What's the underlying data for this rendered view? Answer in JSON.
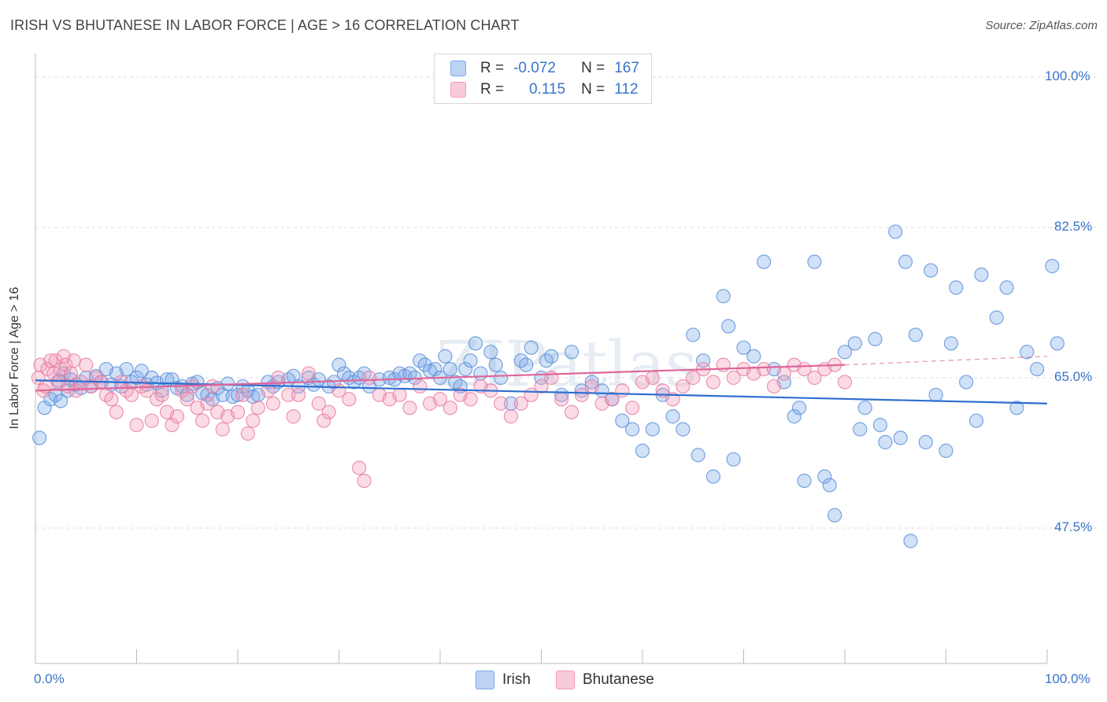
{
  "header": {
    "title": "IRISH VS BHUTANESE IN LABOR FORCE | AGE > 16 CORRELATION CHART",
    "source": "Source: ZipAtlas.com"
  },
  "legend": {
    "rows": [
      {
        "r_label": "R =",
        "r_value": "-0.072",
        "n_label": "N =",
        "n_value": "167",
        "color": "#7aaae8"
      },
      {
        "r_label": "R =",
        "r_value": "0.115",
        "n_label": "N =",
        "n_value": "112",
        "color": "#f39ab8"
      }
    ]
  },
  "chart_data": {
    "type": "scatter",
    "title": "IRISH VS BHUTANESE IN LABOR FORCE | AGE > 16 CORRELATION CHART",
    "ylabel": "In Labor Force | Age > 16",
    "xlabel": "",
    "xlim": [
      0,
      100
    ],
    "ylim": [
      30,
      103
    ],
    "x_tick_labels": [
      "0.0%",
      "100.0%"
    ],
    "y_tick_labels": [
      "100.0%",
      "82.5%",
      "65.0%",
      "47.5%"
    ],
    "y_ticks": [
      100,
      82.5,
      65,
      47.5
    ],
    "grid": true,
    "legend_position": "bottom-center",
    "watermark": "ZIPatlas",
    "series": [
      {
        "name": "Irish",
        "color": "#7aaae8",
        "stroke": "#5a8fd8",
        "trend": {
          "x": [
            0,
            100
          ],
          "y": [
            64.7,
            62.0
          ]
        },
        "points": [
          [
            0.4,
            58.0
          ],
          [
            0.9,
            61.5
          ],
          [
            1.5,
            62.5
          ],
          [
            2.0,
            63.0
          ],
          [
            2.3,
            64.7
          ],
          [
            2.5,
            62.3
          ],
          [
            2.8,
            65.5
          ],
          [
            3.2,
            63.5
          ],
          [
            3.5,
            64.8
          ],
          [
            4.0,
            64.2
          ],
          [
            4.5,
            63.8
          ],
          [
            5.0,
            65.0
          ],
          [
            5.5,
            64.0
          ],
          [
            6.0,
            65.2
          ],
          [
            6.5,
            64.5
          ],
          [
            7.0,
            66.0
          ],
          [
            7.5,
            64.2
          ],
          [
            8.0,
            65.5
          ],
          [
            8.5,
            64.0
          ],
          [
            9.0,
            66.0
          ],
          [
            9.5,
            64.5
          ],
          [
            10.0,
            65.0
          ],
          [
            10.5,
            65.8
          ],
          [
            11.0,
            64.2
          ],
          [
            11.5,
            65.0
          ],
          [
            12.0,
            64.4
          ],
          [
            12.5,
            63.5
          ],
          [
            13.0,
            64.8
          ],
          [
            13.5,
            64.8
          ],
          [
            14.0,
            63.8
          ],
          [
            14.5,
            64.0
          ],
          [
            15.0,
            63.0
          ],
          [
            15.5,
            64.3
          ],
          [
            16.0,
            64.5
          ],
          [
            16.5,
            63.2
          ],
          [
            17.0,
            63.0
          ],
          [
            17.5,
            62.5
          ],
          [
            18.0,
            63.8
          ],
          [
            18.5,
            63.0
          ],
          [
            19.0,
            64.3
          ],
          [
            19.5,
            62.8
          ],
          [
            20.0,
            63.0
          ],
          [
            20.5,
            64.0
          ],
          [
            21.0,
            63.5
          ],
          [
            21.5,
            62.8
          ],
          [
            22.0,
            63.0
          ],
          [
            23.0,
            64.5
          ],
          [
            23.5,
            64.0
          ],
          [
            24.0,
            64.5
          ],
          [
            25.0,
            64.8
          ],
          [
            25.5,
            65.2
          ],
          [
            26.0,
            64.0
          ],
          [
            27.0,
            65.0
          ],
          [
            27.5,
            64.2
          ],
          [
            28.0,
            64.8
          ],
          [
            29.0,
            64.0
          ],
          [
            29.5,
            64.5
          ],
          [
            30.0,
            66.5
          ],
          [
            30.5,
            65.5
          ],
          [
            31.0,
            65.0
          ],
          [
            31.5,
            64.5
          ],
          [
            32.0,
            65.0
          ],
          [
            32.5,
            65.5
          ],
          [
            33.0,
            64.0
          ],
          [
            34.0,
            64.8
          ],
          [
            35.0,
            65.0
          ],
          [
            35.5,
            64.8
          ],
          [
            36.0,
            65.5
          ],
          [
            36.5,
            65.2
          ],
          [
            37.0,
            65.5
          ],
          [
            37.5,
            65.0
          ],
          [
            38.0,
            67.0
          ],
          [
            38.5,
            66.5
          ],
          [
            39.0,
            65.8
          ],
          [
            39.5,
            66.0
          ],
          [
            40.0,
            65.0
          ],
          [
            40.5,
            67.5
          ],
          [
            41.0,
            66.0
          ],
          [
            41.5,
            64.5
          ],
          [
            42.0,
            64.0
          ],
          [
            42.5,
            66.0
          ],
          [
            43.0,
            67.0
          ],
          [
            43.5,
            69.0
          ],
          [
            44.0,
            65.5
          ],
          [
            45.0,
            68.0
          ],
          [
            45.5,
            66.5
          ],
          [
            46.0,
            65.0
          ],
          [
            47.0,
            62.0
          ],
          [
            48.0,
            67.0
          ],
          [
            48.5,
            66.5
          ],
          [
            49.0,
            68.5
          ],
          [
            50.0,
            65.0
          ],
          [
            50.5,
            67.0
          ],
          [
            51.0,
            67.5
          ],
          [
            52.0,
            63.0
          ],
          [
            53.0,
            68.0
          ],
          [
            54.0,
            63.5
          ],
          [
            55.0,
            64.5
          ],
          [
            56.0,
            63.5
          ],
          [
            57.0,
            62.5
          ],
          [
            58.0,
            60.0
          ],
          [
            59.0,
            59.0
          ],
          [
            60.0,
            56.5
          ],
          [
            61.0,
            59.0
          ],
          [
            62.0,
            63.0
          ],
          [
            63.0,
            60.5
          ],
          [
            64.0,
            59.0
          ],
          [
            65.0,
            70.0
          ],
          [
            65.5,
            56.0
          ],
          [
            66.0,
            67.0
          ],
          [
            67.0,
            53.5
          ],
          [
            68.0,
            74.5
          ],
          [
            68.5,
            71.0
          ],
          [
            69.0,
            55.5
          ],
          [
            70.0,
            68.5
          ],
          [
            71.0,
            67.5
          ],
          [
            72.0,
            78.5
          ],
          [
            73.0,
            66.0
          ],
          [
            74.0,
            64.5
          ],
          [
            75.0,
            60.5
          ],
          [
            75.5,
            61.5
          ],
          [
            76.0,
            53.0
          ],
          [
            77.0,
            78.5
          ],
          [
            78.0,
            53.5
          ],
          [
            78.5,
            52.5
          ],
          [
            79.0,
            49.0
          ],
          [
            80.0,
            68.0
          ],
          [
            81.0,
            69.0
          ],
          [
            81.5,
            59.0
          ],
          [
            82.0,
            61.5
          ],
          [
            83.0,
            69.5
          ],
          [
            83.5,
            59.5
          ],
          [
            84.0,
            57.5
          ],
          [
            85.0,
            82.0
          ],
          [
            85.5,
            58.0
          ],
          [
            86.0,
            78.5
          ],
          [
            86.5,
            46.0
          ],
          [
            87.0,
            70.0
          ],
          [
            88.0,
            57.5
          ],
          [
            88.5,
            77.5
          ],
          [
            89.0,
            63.0
          ],
          [
            90.0,
            56.5
          ],
          [
            90.5,
            69.0
          ],
          [
            91.0,
            75.5
          ],
          [
            92.0,
            64.5
          ],
          [
            93.0,
            60.0
          ],
          [
            93.5,
            77.0
          ],
          [
            95.0,
            72.0
          ],
          [
            96.0,
            75.5
          ],
          [
            97.0,
            61.5
          ],
          [
            98.0,
            68.0
          ],
          [
            99.0,
            66.0
          ],
          [
            100.5,
            78.0
          ],
          [
            101.0,
            69.0
          ]
        ]
      },
      {
        "name": "Bhutanese",
        "color": "#f39ab8",
        "stroke": "#e77aa0",
        "trend": {
          "x": [
            0,
            80
          ],
          "y": [
            63.5,
            66.5
          ]
        },
        "trend_dashed": {
          "x": [
            80,
            100
          ],
          "y": [
            66.5,
            67.5
          ]
        },
        "points": [
          [
            0.3,
            65.0
          ],
          [
            0.5,
            66.5
          ],
          [
            0.8,
            63.5
          ],
          [
            1.0,
            64.0
          ],
          [
            1.2,
            66.0
          ],
          [
            1.5,
            67.0
          ],
          [
            1.8,
            65.5
          ],
          [
            2.0,
            67.0
          ],
          [
            2.3,
            64.5
          ],
          [
            2.5,
            66.0
          ],
          [
            2.8,
            67.5
          ],
          [
            3.0,
            66.5
          ],
          [
            3.2,
            64.0
          ],
          [
            3.5,
            65.5
          ],
          [
            3.8,
            67.0
          ],
          [
            4.0,
            63.5
          ],
          [
            4.5,
            64.5
          ],
          [
            5.0,
            66.5
          ],
          [
            5.5,
            64.0
          ],
          [
            6.0,
            65.0
          ],
          [
            6.5,
            64.5
          ],
          [
            7.0,
            63.0
          ],
          [
            7.5,
            62.5
          ],
          [
            8.0,
            61.0
          ],
          [
            8.5,
            64.5
          ],
          [
            9.0,
            63.5
          ],
          [
            9.5,
            63.0
          ],
          [
            10.0,
            59.5
          ],
          [
            10.5,
            64.0
          ],
          [
            11.0,
            63.5
          ],
          [
            11.5,
            60.0
          ],
          [
            12.0,
            62.5
          ],
          [
            12.5,
            63.0
          ],
          [
            13.0,
            61.0
          ],
          [
            13.5,
            59.5
          ],
          [
            14.0,
            60.5
          ],
          [
            14.5,
            63.5
          ],
          [
            15.0,
            62.5
          ],
          [
            15.5,
            64.0
          ],
          [
            16.0,
            61.5
          ],
          [
            16.5,
            60.0
          ],
          [
            17.0,
            62.0
          ],
          [
            17.5,
            64.0
          ],
          [
            18.0,
            61.0
          ],
          [
            18.5,
            59.0
          ],
          [
            19.0,
            60.5
          ],
          [
            20.0,
            61.0
          ],
          [
            20.5,
            63.0
          ],
          [
            21.0,
            58.5
          ],
          [
            21.5,
            60.0
          ],
          [
            22.0,
            61.5
          ],
          [
            23.0,
            63.5
          ],
          [
            23.5,
            62.0
          ],
          [
            24.0,
            65.0
          ],
          [
            25.0,
            63.0
          ],
          [
            25.5,
            60.5
          ],
          [
            26.0,
            63.0
          ],
          [
            27.0,
            65.5
          ],
          [
            28.0,
            62.0
          ],
          [
            28.5,
            60.0
          ],
          [
            29.0,
            61.0
          ],
          [
            30.0,
            63.5
          ],
          [
            31.0,
            62.5
          ],
          [
            32.0,
            54.5
          ],
          [
            32.5,
            53.0
          ],
          [
            33.0,
            65.0
          ],
          [
            34.0,
            63.0
          ],
          [
            35.0,
            62.5
          ],
          [
            36.0,
            63.0
          ],
          [
            37.0,
            61.5
          ],
          [
            38.0,
            64.0
          ],
          [
            39.0,
            62.0
          ],
          [
            40.0,
            62.5
          ],
          [
            41.0,
            61.5
          ],
          [
            42.0,
            63.0
          ],
          [
            43.0,
            62.5
          ],
          [
            44.0,
            64.0
          ],
          [
            45.0,
            63.5
          ],
          [
            46.0,
            62.0
          ],
          [
            47.0,
            60.5
          ],
          [
            48.0,
            62.0
          ],
          [
            49.0,
            63.0
          ],
          [
            50.0,
            64.0
          ],
          [
            51.0,
            65.0
          ],
          [
            52.0,
            62.5
          ],
          [
            53.0,
            61.0
          ],
          [
            54.0,
            63.0
          ],
          [
            55.0,
            64.0
          ],
          [
            56.0,
            62.0
          ],
          [
            57.0,
            62.5
          ],
          [
            58.0,
            63.5
          ],
          [
            59.0,
            61.5
          ],
          [
            60.0,
            64.5
          ],
          [
            61.0,
            65.0
          ],
          [
            62.0,
            63.5
          ],
          [
            63.0,
            62.5
          ],
          [
            64.0,
            64.0
          ],
          [
            65.0,
            65.0
          ],
          [
            66.0,
            66.0
          ],
          [
            67.0,
            64.5
          ],
          [
            68.0,
            66.5
          ],
          [
            69.0,
            65.0
          ],
          [
            70.0,
            66.0
          ],
          [
            71.0,
            65.5
          ],
          [
            72.0,
            66.0
          ],
          [
            73.0,
            64.0
          ],
          [
            74.0,
            65.5
          ],
          [
            75.0,
            66.5
          ],
          [
            76.0,
            66.0
          ],
          [
            77.0,
            65.0
          ],
          [
            78.0,
            66.0
          ],
          [
            79.0,
            66.5
          ],
          [
            80.0,
            64.5
          ]
        ]
      }
    ]
  },
  "bottom_legend": {
    "items": [
      {
        "label": "Irish",
        "color": "#7aaae8"
      },
      {
        "label": "Bhutanese",
        "color": "#f39ab8"
      }
    ]
  }
}
